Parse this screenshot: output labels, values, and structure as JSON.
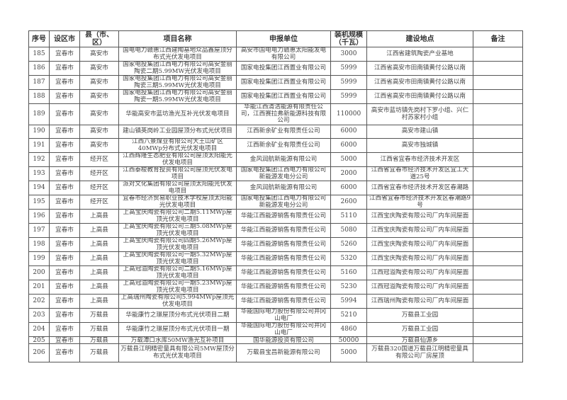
{
  "table": {
    "headers": {
      "seq": "序号",
      "city": "设区市",
      "county": "县（市、区）",
      "project": "项目名称",
      "applicant": "申报单位",
      "capacity": "装机规模（千瓦）",
      "location": "建设地点",
      "remarks": "备注"
    },
    "rows": [
      {
        "seq": "185",
        "city": "宜春市",
        "county": "高安市",
        "project": "国电电力赣惠江西建陶基地众品鑫屋顶分布式光伏发电项目",
        "applicant": "高安市国电电力赣惠太阳能发电有限公司",
        "capacity": "3000",
        "location": "江西省建筑陶瓷产业基地",
        "remarks": ""
      },
      {
        "seq": "186",
        "city": "宜春市",
        "county": "高安市",
        "project": "国家电投集团江西电力有限公司高安金丽陶瓷二期5.99MW光伏发电项目",
        "applicant": "国家电投集团江西置业有限公司",
        "capacity": "5999",
        "location": "江西省高安市田南镇黄付公路以南",
        "remarks": ""
      },
      {
        "seq": "187",
        "city": "宜春市",
        "county": "高安市",
        "project": "国家电投集团江西电力有限公司高安金丽陶瓷三期5.99MW光伏发电项目",
        "applicant": "国家电投集团江西置业有限公司",
        "capacity": "5999",
        "location": "江西省高安市田南镇黄付公路以南",
        "remarks": ""
      },
      {
        "seq": "188",
        "city": "宜春市",
        "county": "高安市",
        "project": "国家电投集团江西电力有限公司高安金丽陶瓷一期5.99MW光伏发电项目",
        "applicant": "国家电投集团江西置业有限公司",
        "capacity": "5999",
        "location": "江西省高安市田南镇黄付公路以南",
        "remarks": ""
      },
      {
        "seq": "189",
        "city": "宜春市",
        "county": "高安市",
        "project": "华能高安市蓝坊渔光互补光伏发电项目",
        "applicant": "华能江西清洁能源有限责任公司，江西赛拉弗新能源科技有限公司",
        "capacity": "110000",
        "location": "高安市蓝坊镇先岗村下罗小组、兴仁村苏家村小组",
        "remarks": ""
      },
      {
        "seq": "190",
        "city": "宜春市",
        "county": "高安市",
        "project": "建山镇英岗岭工业园屋顶分布式光伏项目",
        "applicant": "江西新余矿业有限责任公司",
        "capacity": "6000",
        "location": "高安市建山镇",
        "remarks": ""
      },
      {
        "seq": "191",
        "city": "宜春市",
        "county": "高安市",
        "project": "江西八景煤业有限公司大王山矿区40MWp分布式光伏发电项目",
        "applicant": "江西新余矿业有限责任公司",
        "capacity": "6000",
        "location": "高安市独城镇",
        "remarks": ""
      },
      {
        "seq": "192",
        "city": "宜春市",
        "county": "经开区",
        "project": "江西辉隆生态肥业有限公司屋顶太阳能光伏发电项目",
        "applicant": "金风润航新能源有限公司",
        "capacity": "5000",
        "location": "江西省宜春市经济技术开发区",
        "remarks": ""
      },
      {
        "seq": "193",
        "city": "宜春市",
        "county": "经开区",
        "project": "江西泰梭教育投资有限公司屋顶光伏发电项目",
        "applicant": "国家电投集团江西电力有限公司新能源发电分公司",
        "capacity": "2000",
        "location": "江西省宜春市经济技术开发区宜工大道25号",
        "remarks": ""
      },
      {
        "seq": "194",
        "city": "宜春市",
        "county": "经开区",
        "project": "派对文化集团有限公司屋顶太阳能光伏发电项目",
        "applicant": "金风润航新能源有限公司",
        "capacity": "6000",
        "location": "江西省宜春市经济技术开发区春潮路",
        "remarks": ""
      },
      {
        "seq": "195",
        "city": "宜春市",
        "county": "经开区",
        "project": "宜春市经济贸易职业技术学校屋顶太阳能光伏发电项目",
        "applicant": "国家电投集团江西电力有限公司新能源发电分公司",
        "capacity": "2600",
        "location": "江西省宜春市经济技术开发区春潮路9号",
        "remarks": ""
      },
      {
        "seq": "196",
        "city": "宜春市",
        "county": "上高县",
        "project": "上高宝庆陶瓷有限公司二期5.11MWp屋顶光伏发电项目",
        "applicant": "华能江西能源销售有限责任公司",
        "capacity": "5110",
        "location": "江西宝庆陶瓷有限公司厂内车间屋面",
        "remarks": ""
      },
      {
        "seq": "197",
        "city": "宜春市",
        "county": "上高县",
        "project": "上高宝庆陶瓷有限公司三期5.08MWp屋顶光伏发电项目",
        "applicant": "华能江西能源销售有限责任公司",
        "capacity": "5080",
        "location": "江西宝庆陶瓷有限公司厂内车间屋面",
        "remarks": ""
      },
      {
        "seq": "198",
        "city": "宜春市",
        "county": "上高县",
        "project": "上高宝庆陶瓷有限公司四期5.26MWp屋顶光伏发电项目",
        "applicant": "华能江西能源销售有限责任公司",
        "capacity": "5260",
        "location": "江西宝庆陶瓷有限公司厂内车间屋面",
        "remarks": ""
      },
      {
        "seq": "199",
        "city": "宜春市",
        "county": "上高县",
        "project": "上高宝庆陶瓷有限公司一期5.32MWp屋顶光伏发电项目",
        "applicant": "华能江西能源销售有限责任公司",
        "capacity": "5320",
        "location": "江西宝庆陶瓷有限公司厂内车间屋面",
        "remarks": ""
      },
      {
        "seq": "200",
        "city": "宜春市",
        "county": "上高县",
        "project": "上高冠溢陶瓷有限公司二期5.16MWp屋顶光伏发电项目",
        "applicant": "华能江西能源销售有限责任公司",
        "capacity": "5160",
        "location": "江西冠溢陶瓷有限公司厂内车间屋面",
        "remarks": ""
      },
      {
        "seq": "201",
        "city": "宜春市",
        "county": "上高县",
        "project": "上高冠溢陶瓷有限公司一期5.23MWp屋顶光伏发电项目",
        "applicant": "华能江西能源销售有限责任公司",
        "capacity": "5230",
        "location": "江西冠溢陶瓷有限公司厂内车间屋面",
        "remarks": ""
      },
      {
        "seq": "202",
        "city": "宜春市",
        "county": "上高县",
        "project": "上高瑞州陶瓷有限公司5.994MWp屋顶光伏发电项目",
        "applicant": "华能江西能源销售有限责任公司",
        "capacity": "5994",
        "location": "江西瑞州陶瓷有限公司厂内车间屋面",
        "remarks": ""
      },
      {
        "seq": "203",
        "city": "宜春市",
        "county": "万载县",
        "project": "华能康竹之璟屋顶分布式光伏项目二期",
        "applicant": "华能国际电力股份有限公司井冈山电厂",
        "capacity": "5210",
        "location": "万载县工业园",
        "remarks": ""
      },
      {
        "seq": "204",
        "city": "宜春市",
        "county": "万载县",
        "project": "华能康竹之璟屋顶分布式光伏项目一期",
        "applicant": "华能国际电力股份有限公司井冈山电厂",
        "capacity": "4860",
        "location": "万载县工业园",
        "remarks": ""
      },
      {
        "seq": "205",
        "city": "宜春市",
        "county": "万载县",
        "project": "万载潭口水库50MW渔光互补项目",
        "applicant": "国华能源投资有限公司",
        "capacity": "50000",
        "location": "万载县仙源乡",
        "remarks": ""
      },
      {
        "seq": "206",
        "city": "宜春市",
        "county": "万载县",
        "project": "万载县江明精密量具有限公司5MW屋顶分布式光伏发电项目",
        "applicant": "万载县宝昌新能源有限公司",
        "capacity": "5000",
        "location": "万载县320国道万载县江明精密量具有限公司厂房屋顶",
        "remarks": ""
      }
    ]
  }
}
